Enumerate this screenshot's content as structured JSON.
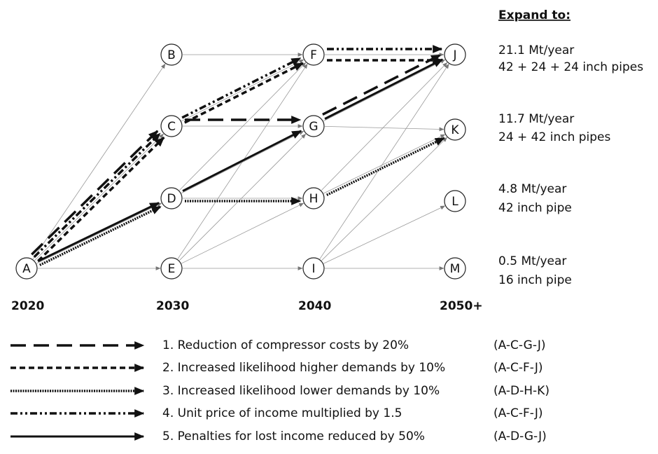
{
  "nodes": [
    {
      "label": "A"
    },
    {
      "label": "B"
    },
    {
      "label": "C"
    },
    {
      "label": "D"
    },
    {
      "label": "E"
    },
    {
      "label": "F"
    },
    {
      "label": "G"
    },
    {
      "label": "H"
    },
    {
      "label": "I"
    },
    {
      "label": "J"
    },
    {
      "label": "K"
    },
    {
      "label": "L"
    },
    {
      "label": "M"
    }
  ],
  "years": [
    "2020",
    "2030",
    "2040",
    "2050+"
  ],
  "expand": {
    "title": "Expand to:",
    "rows": [
      [
        "21.1 Mt/year",
        "42 + 24 + 24 inch pipes"
      ],
      [
        "11.7 Mt/year",
        "24 + 42 inch pipes"
      ],
      [
        "4.8 Mt/year",
        "42 inch pipe"
      ],
      [
        "0.5 Mt/year",
        "16 inch pipe"
      ]
    ]
  },
  "legend": [
    {
      "text": "1. Reduction of compressor costs by 20%",
      "path": "(A-C-G-J)"
    },
    {
      "text": "2. Increased likelihood higher demands by 10%",
      "path": "(A-C-F-J)"
    },
    {
      "text": "3. Increased likelihood lower demands by 10%",
      "path": "(A-D-H-K)"
    },
    {
      "text": "4. Unit price of income multiplied by 1.5",
      "path": "(A-C-F-J)"
    },
    {
      "text": "5. Penalties for lost income reduced by 50%",
      "path": "(A-D-G-J)"
    }
  ]
}
